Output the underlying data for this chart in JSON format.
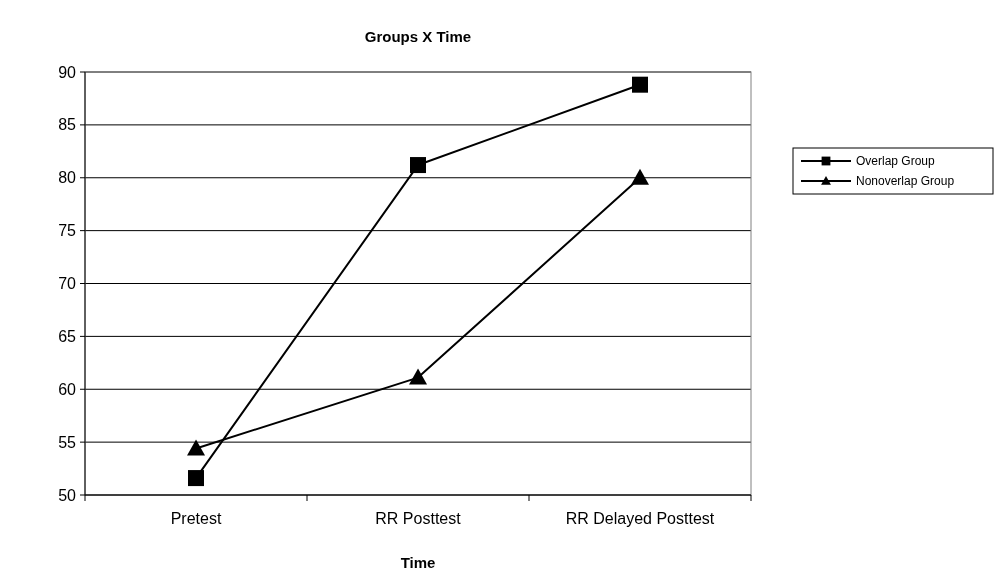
{
  "chart_data": {
    "type": "line",
    "title": "Groups X Time",
    "xlabel": "Time",
    "categories": [
      "Pretest",
      "RR Posttest",
      "RR Delayed Posttest"
    ],
    "series": [
      {
        "name": "Overlap Group",
        "color": "#000000",
        "marker": "square",
        "values": [
          51.6,
          81.2,
          88.8
        ]
      },
      {
        "name": "Nonoverlap Group",
        "color": "#000000",
        "marker": "triangle",
        "values": [
          54.4,
          61.1,
          80.0
        ]
      }
    ],
    "ylim": [
      50,
      90
    ],
    "yticks": [
      50,
      55,
      60,
      65,
      70,
      75,
      80,
      85,
      90
    ],
    "grid": "y",
    "legend": "right",
    "line_style": "solid"
  }
}
